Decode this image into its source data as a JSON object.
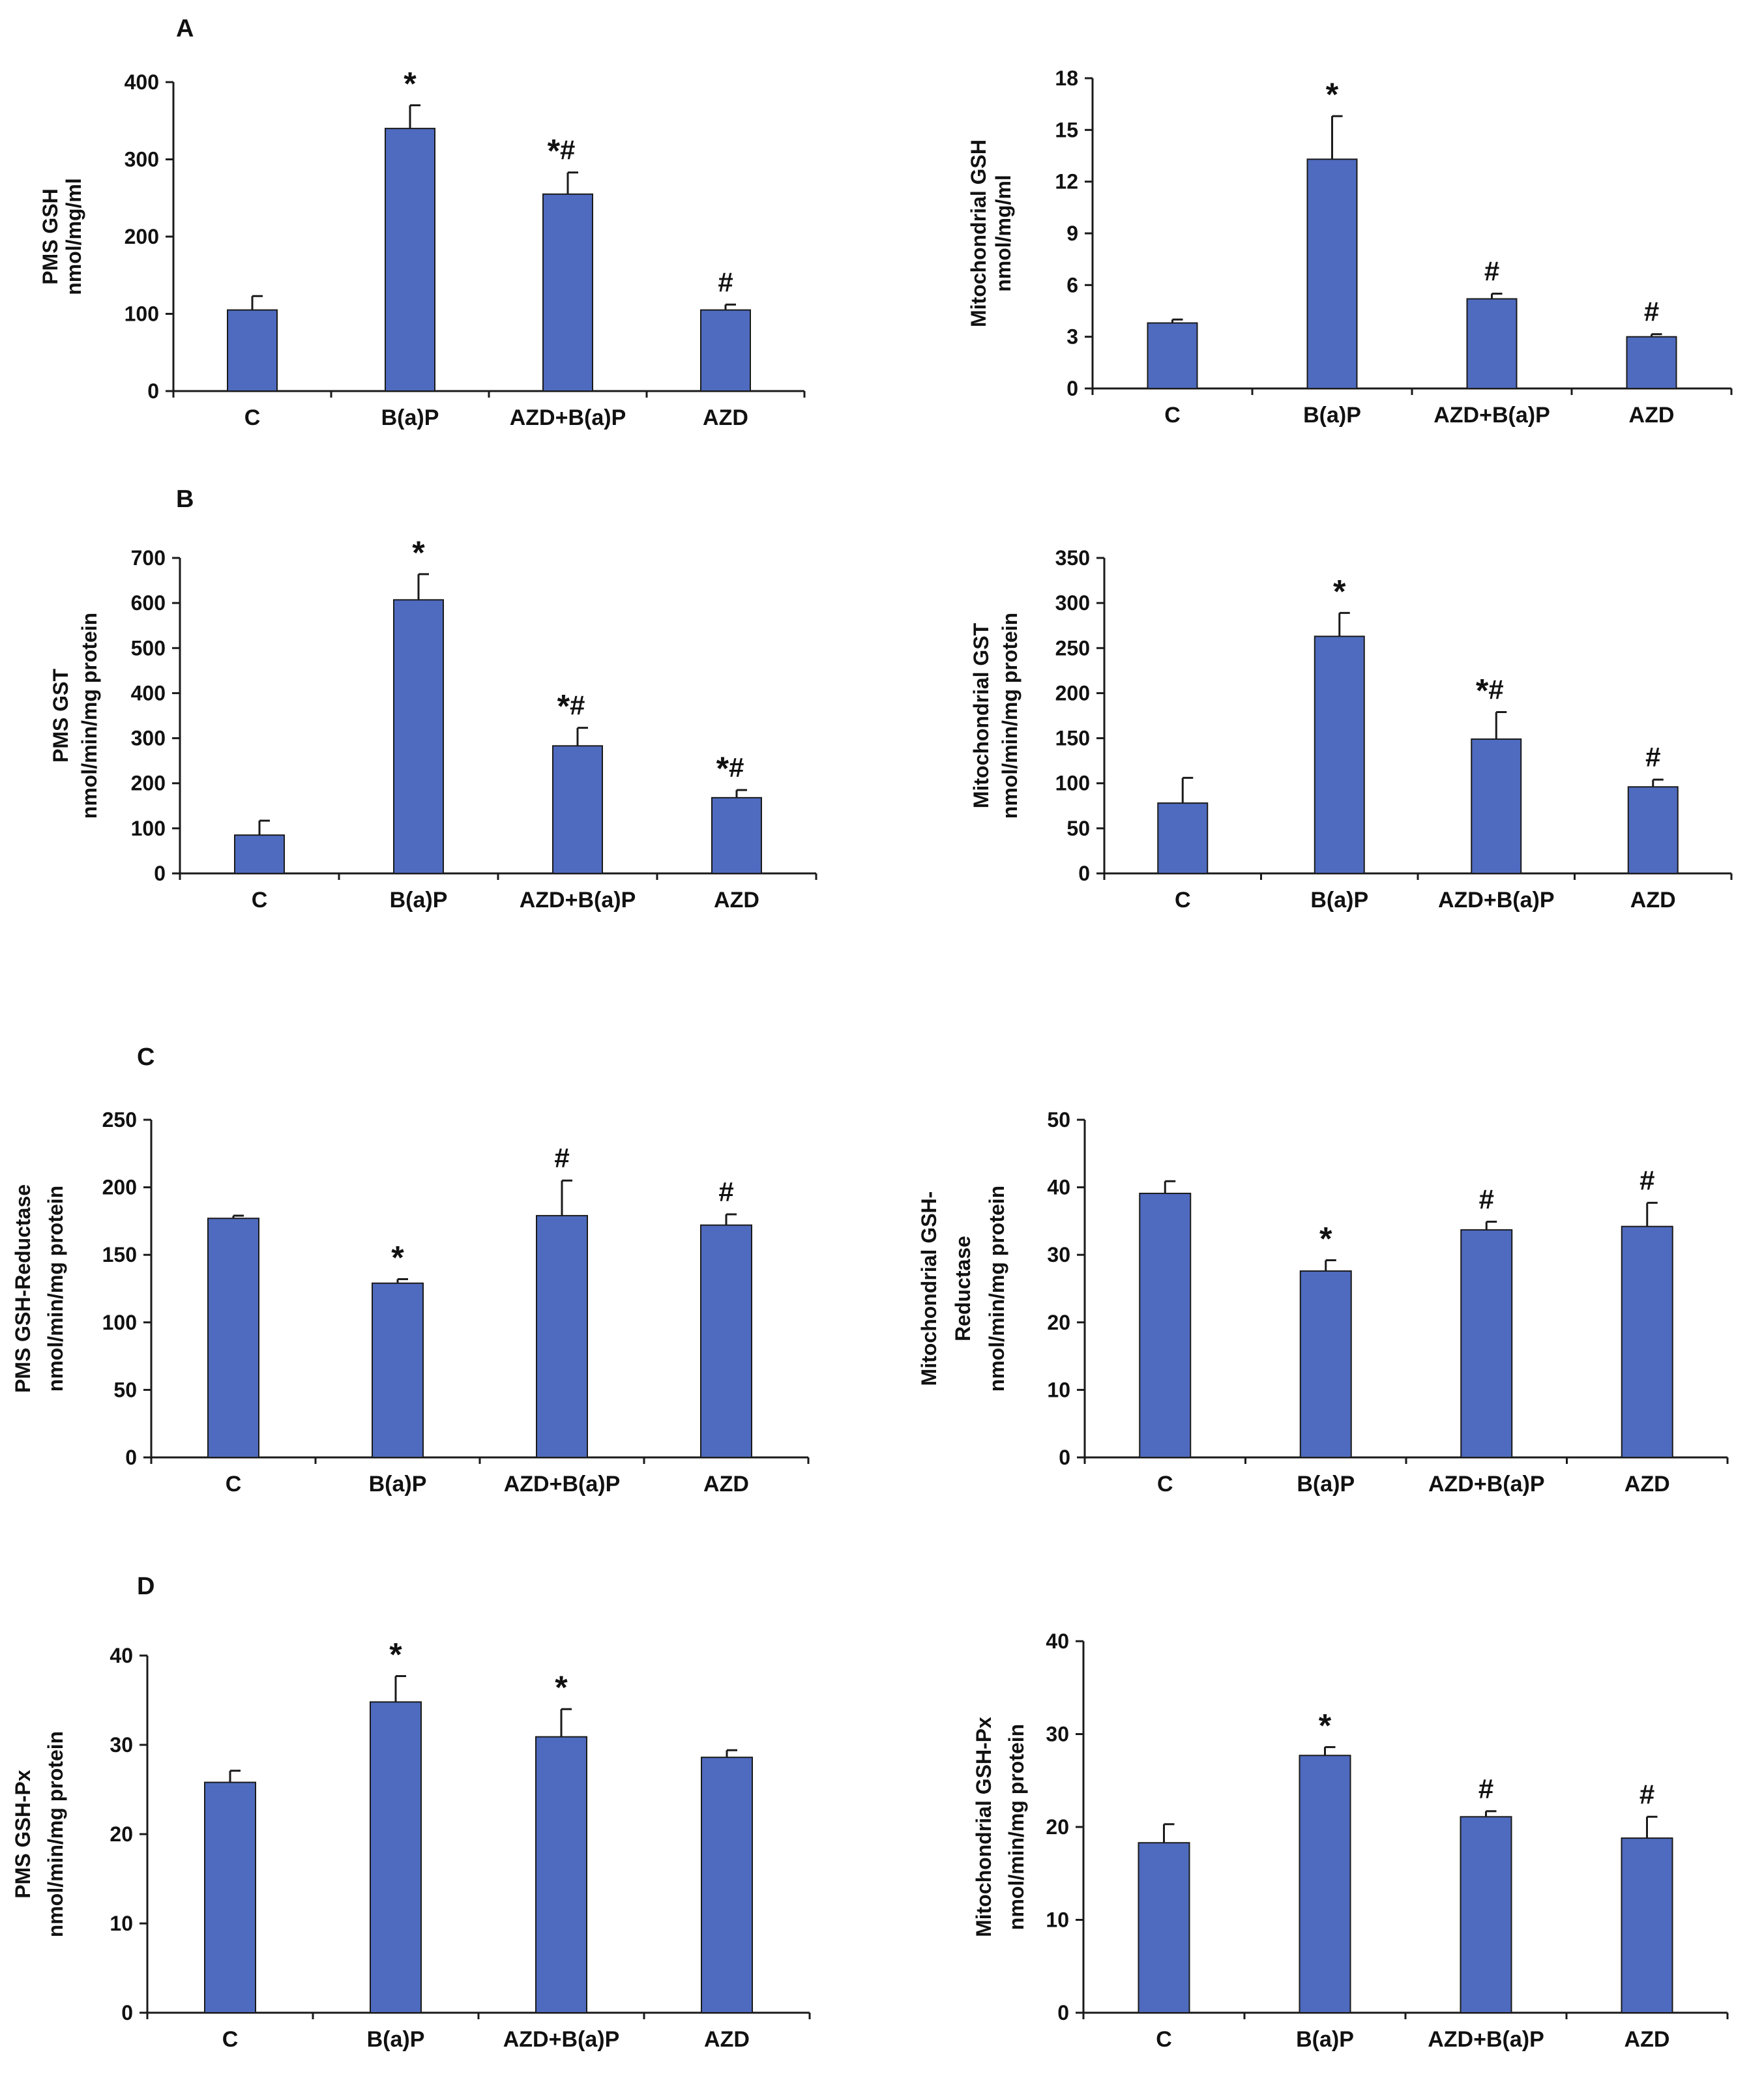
{
  "panel_letters": [
    "A",
    "B",
    "C",
    "D"
  ],
  "colors": {
    "bar_fill": "#4f6bbf",
    "bar_stroke": "#1a1a1a",
    "axis": "#1a1a1a",
    "text": "#111111"
  },
  "chart_data": [
    {
      "id": "A-left",
      "panel": "A",
      "type": "bar",
      "categories": [
        "C",
        "B(a)P",
        "AZD+B(a)P",
        "AZD"
      ],
      "values": [
        105,
        340,
        255,
        105
      ],
      "errors": [
        18,
        30,
        28,
        7
      ],
      "annotations": [
        "",
        "*",
        "*#",
        "#"
      ],
      "ylabel": [
        "PMS GSH",
        "nmol/mg/ml"
      ],
      "ylim": [
        0,
        400
      ],
      "yticks": [
        0,
        100,
        200,
        300,
        400
      ]
    },
    {
      "id": "A-right",
      "panel": "A",
      "type": "bar",
      "categories": [
        "C",
        "B(a)P",
        "AZD+B(a)P",
        "AZD"
      ],
      "values": [
        3.8,
        13.3,
        5.2,
        3.0
      ],
      "errors": [
        0.2,
        2.5,
        0.3,
        0.15
      ],
      "annotations": [
        "",
        "*",
        "#",
        "#"
      ],
      "ylabel": [
        "Mitochondrial GSH",
        "nmol/mg/ml"
      ],
      "ylim": [
        0,
        18
      ],
      "yticks": [
        0,
        3,
        6,
        9,
        12,
        15,
        18
      ]
    },
    {
      "id": "B-left",
      "panel": "B",
      "type": "bar",
      "categories": [
        "C",
        "B(a)P",
        "AZD+B(a)P",
        "AZD"
      ],
      "values": [
        85,
        607,
        283,
        168
      ],
      "errors": [
        32,
        57,
        40,
        17
      ],
      "annotations": [
        "",
        "*",
        "*#",
        "*#"
      ],
      "ylabel": [
        "PMS GST",
        "nmol/min/mg protein"
      ],
      "ylim": [
        0,
        700
      ],
      "yticks": [
        0,
        100,
        200,
        300,
        400,
        500,
        600,
        700
      ]
    },
    {
      "id": "B-right",
      "panel": "B",
      "type": "bar",
      "categories": [
        "C",
        "B(a)P",
        "AZD+B(a)P",
        "AZD"
      ],
      "values": [
        78,
        263,
        149,
        96
      ],
      "errors": [
        28,
        26,
        30,
        8
      ],
      "annotations": [
        "",
        "*",
        "*#",
        "#"
      ],
      "ylabel": [
        "Mitochondrial GST",
        "nmol/min/mg protein"
      ],
      "ylim": [
        0,
        350
      ],
      "yticks": [
        0,
        50,
        100,
        150,
        200,
        250,
        300,
        350
      ]
    },
    {
      "id": "C-left",
      "panel": "C",
      "type": "bar",
      "categories": [
        "C",
        "B(a)P",
        "AZD+B(a)P",
        "AZD"
      ],
      "values": [
        177,
        129,
        179,
        172
      ],
      "errors": [
        2,
        3,
        26,
        8
      ],
      "annotations": [
        "",
        "*",
        "#",
        "#"
      ],
      "ylabel": [
        "PMS GSH-Reductase",
        "nmol/min/mg protein"
      ],
      "ylim": [
        0,
        250
      ],
      "yticks": [
        0,
        50,
        100,
        150,
        200,
        250
      ]
    },
    {
      "id": "C-right",
      "panel": "C",
      "type": "bar",
      "categories": [
        "C",
        "B(a)P",
        "AZD+B(a)P",
        "AZD"
      ],
      "values": [
        39.1,
        27.6,
        33.7,
        34.2
      ],
      "errors": [
        1.8,
        1.6,
        1.2,
        3.5
      ],
      "annotations": [
        "",
        "*",
        "#",
        "#"
      ],
      "ylabel": [
        "Mitochondrial GSH-",
        "Reductase",
        "nmol/min/mg protein"
      ],
      "ylim": [
        0,
        50
      ],
      "yticks": [
        0,
        10,
        20,
        30,
        40,
        50
      ]
    },
    {
      "id": "D-left",
      "panel": "D",
      "type": "bar",
      "categories": [
        "C",
        "B(a)P",
        "AZD+B(a)P",
        "AZD"
      ],
      "values": [
        25.8,
        34.8,
        30.9,
        28.6
      ],
      "errors": [
        1.3,
        2.9,
        3.1,
        0.8
      ],
      "annotations": [
        "",
        "*",
        "*",
        ""
      ],
      "ylabel": [
        "PMS GSH-Px",
        "nmol/min/mg protein"
      ],
      "ylim": [
        0,
        40
      ],
      "yticks": [
        0,
        10,
        20,
        30,
        40
      ]
    },
    {
      "id": "D-right",
      "panel": "D",
      "type": "bar",
      "categories": [
        "C",
        "B(a)P",
        "AZD+B(a)P",
        "AZD"
      ],
      "values": [
        18.3,
        27.7,
        21.1,
        18.8
      ],
      "errors": [
        2.0,
        0.9,
        0.6,
        2.3
      ],
      "annotations": [
        "",
        "*",
        "#",
        "#"
      ],
      "ylabel": [
        "Mitochondrial GSH-Px",
        "nmol/min/mg protein"
      ],
      "ylim": [
        0,
        40
      ],
      "yticks": [
        0,
        10,
        20,
        30,
        40
      ]
    }
  ]
}
